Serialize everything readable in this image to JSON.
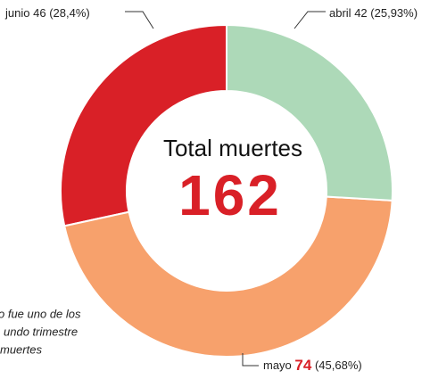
{
  "chart_data": {
    "type": "donut",
    "center_title": "Total muertes",
    "total": 162,
    "categories": [
      "abril",
      "mayo",
      "junio"
    ],
    "values": [
      42,
      74,
      46
    ],
    "percentages": [
      25.93,
      45.68,
      28.4
    ],
    "percentage_labels": [
      "(25,93%)",
      "(45,68%)",
      "(28,4%)"
    ],
    "colors": [
      "#add9b8",
      "#f7a16c",
      "#d92027"
    ],
    "annotation": [
      "o fue uno de los",
      "undo trimestre",
      "muertes"
    ]
  }
}
